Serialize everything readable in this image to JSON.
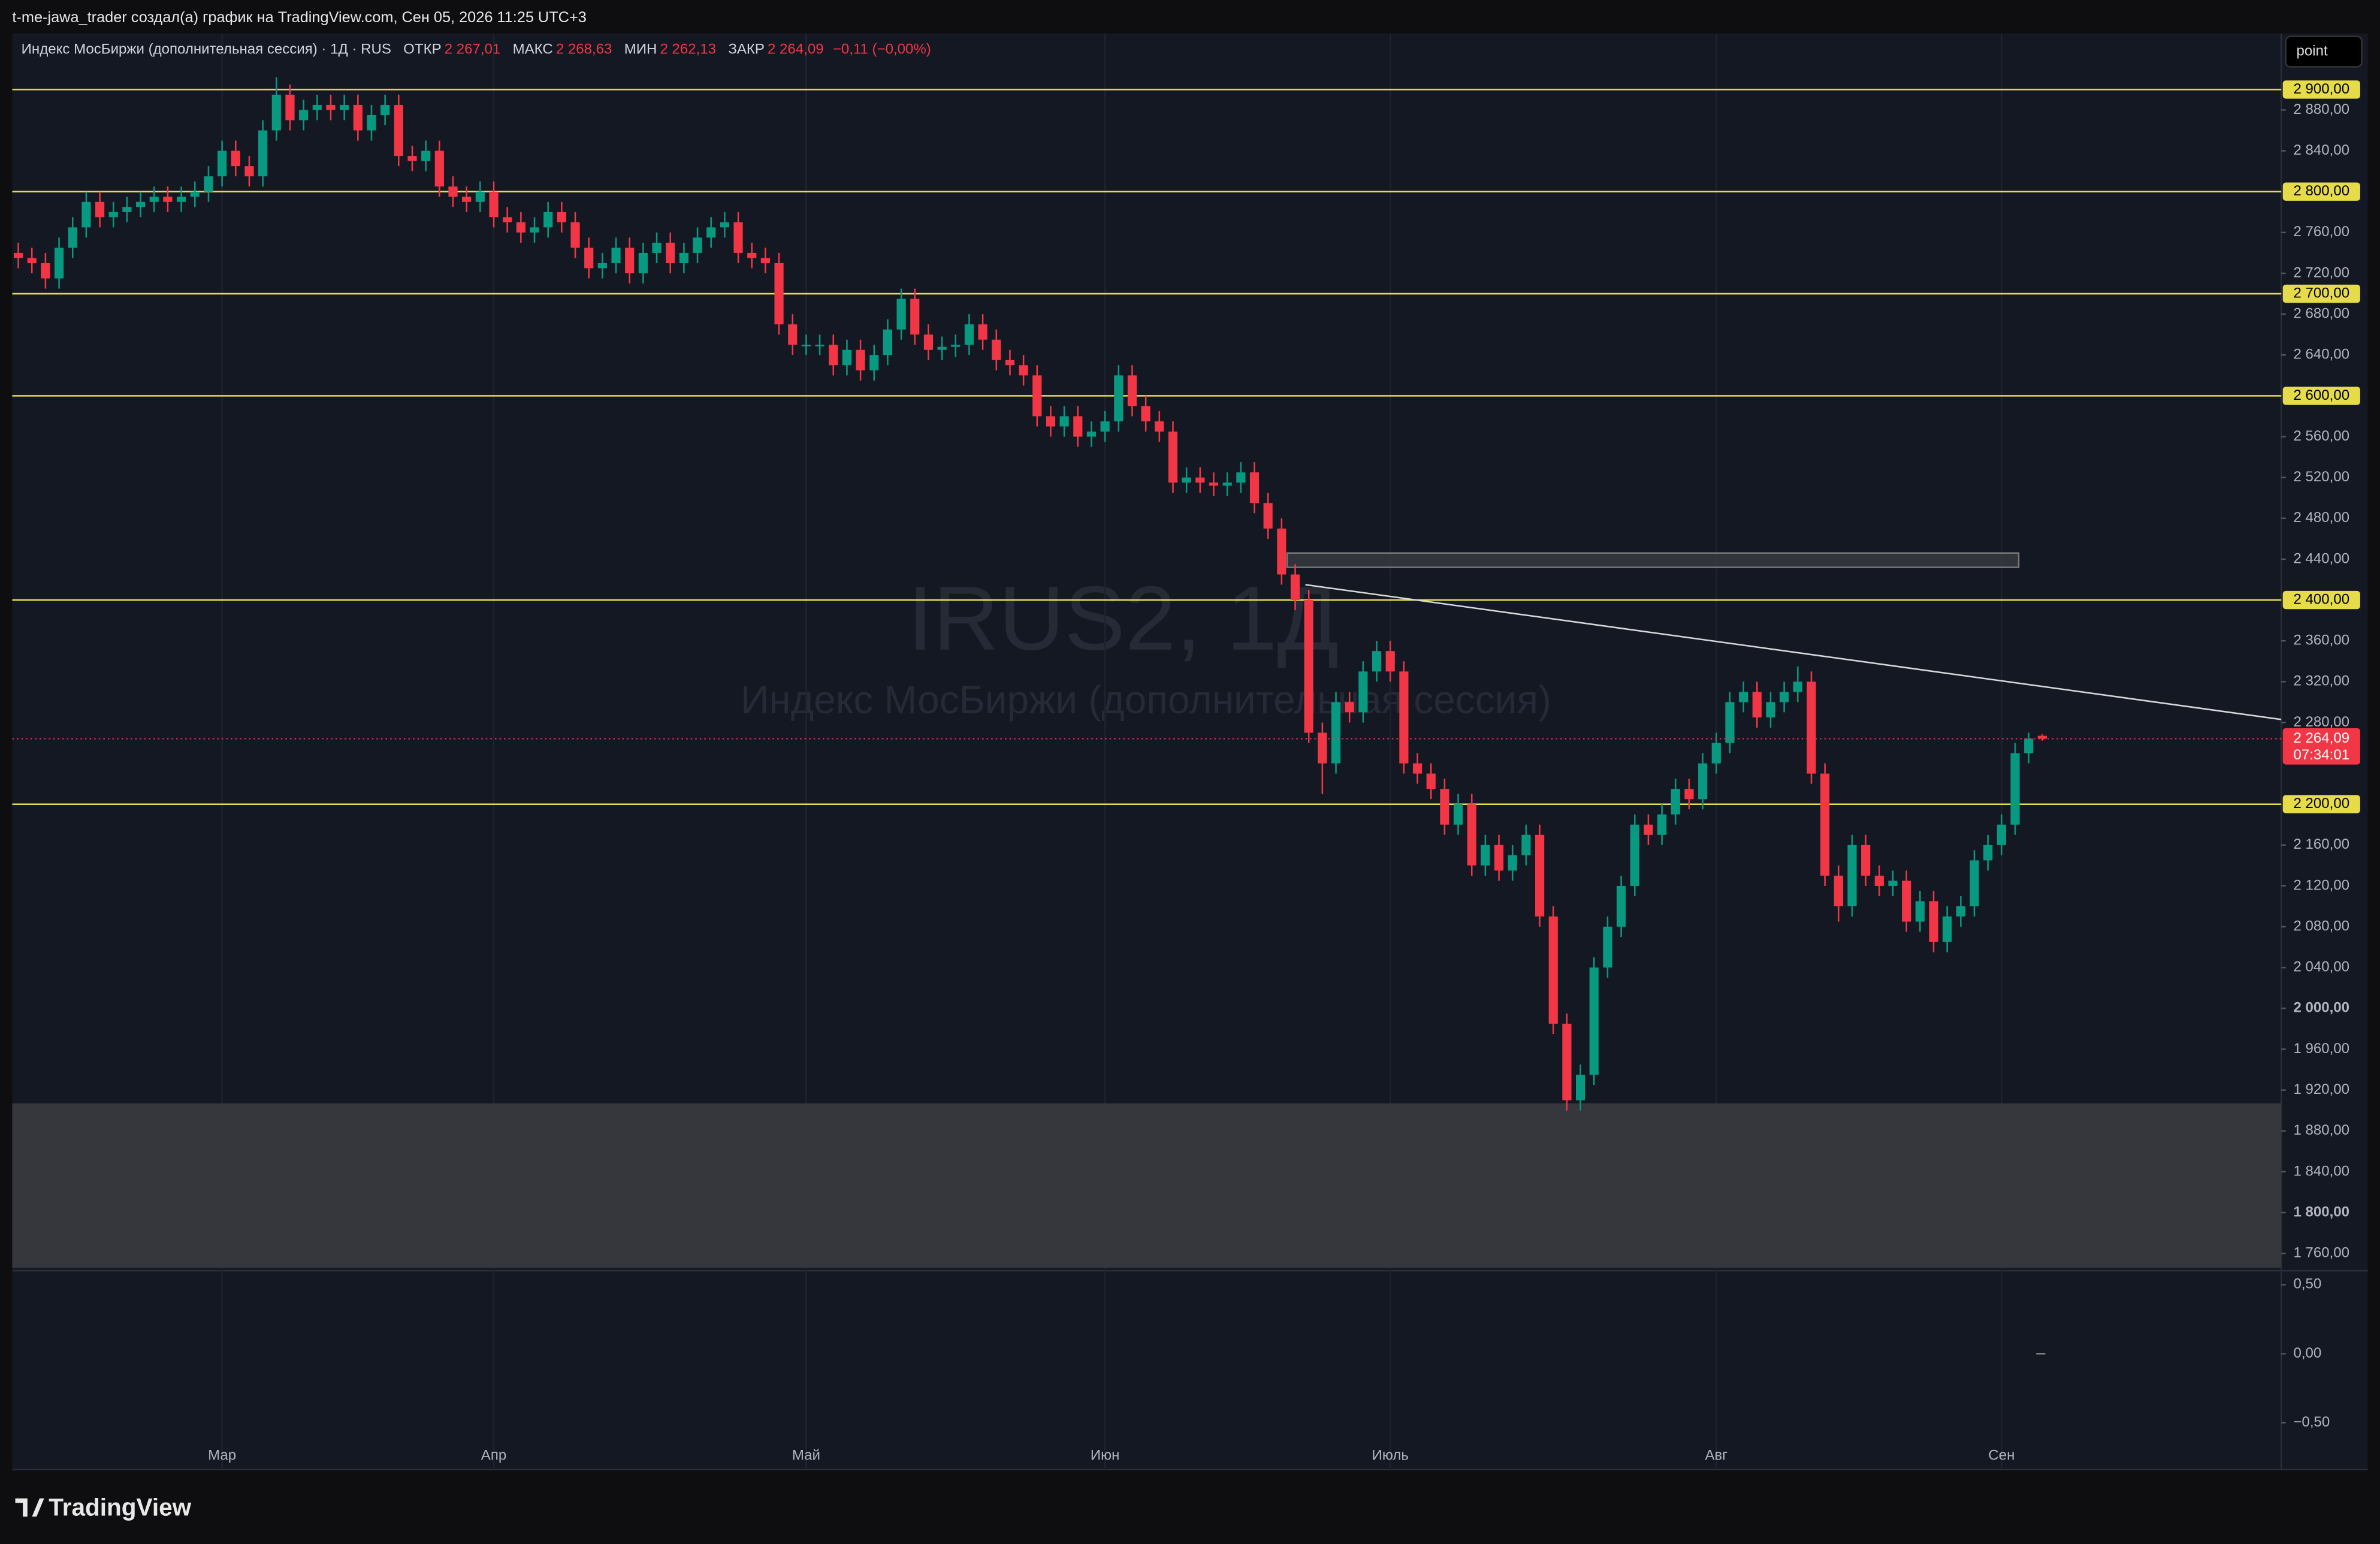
{
  "header": "t-me-jawa_trader создал(а) график на TradingView.com, Сен 05, 2026 11:25 UTC+3",
  "button": "point",
  "footer": "TradingView",
  "watermark": {
    "symbol": "IRUS2, 1Д",
    "name": "Индекс МосБиржи (дополнительная сессия)"
  },
  "legend": {
    "name": "Индекс МосБиржи (дополнительная сессия) · 1Д · RUS",
    "items": [
      {
        "key": "ОТКР",
        "value": "2 267,01"
      },
      {
        "key": "МАКС",
        "value": "2 268,63"
      },
      {
        "key": "МИН",
        "value": "2 262,13"
      },
      {
        "key": "ЗАКР",
        "value": "2 264,09"
      }
    ],
    "change": "−0,11 (−0,00%)"
  },
  "chart_data": {
    "type": "candlestick",
    "up_color": "#089981",
    "down_color": "#f23645",
    "categories": [
      null,
      null,
      null,
      null,
      null,
      null,
      null,
      null,
      null,
      null,
      null,
      null,
      null,
      null,
      null,
      "Мар",
      null,
      null,
      null,
      null,
      null,
      null,
      null,
      null,
      null,
      null,
      null,
      null,
      null,
      null,
      null,
      null,
      null,
      null,
      null,
      "Апр",
      null,
      null,
      null,
      null,
      null,
      null,
      null,
      null,
      null,
      null,
      null,
      null,
      null,
      null,
      null,
      null,
      null,
      null,
      null,
      null,
      null,
      null,
      "Май",
      null,
      null,
      null,
      null,
      null,
      null,
      null,
      null,
      null,
      null,
      null,
      null,
      null,
      null,
      null,
      null,
      null,
      null,
      null,
      null,
      null,
      "Июн",
      null,
      null,
      null,
      null,
      null,
      null,
      null,
      null,
      null,
      null,
      null,
      null,
      null,
      null,
      null,
      null,
      null,
      null,
      null,
      null,
      "Июль",
      null,
      null,
      null,
      null,
      null,
      null,
      null,
      null,
      null,
      null,
      null,
      null,
      null,
      null,
      null,
      null,
      null,
      null,
      null,
      null,
      null,
      null,
      null,
      "Авг",
      null,
      null,
      null,
      null,
      null,
      null,
      null,
      null,
      null,
      null,
      null,
      null,
      null,
      null,
      null,
      null,
      null,
      null,
      null,
      null,
      "Сен",
      null,
      null,
      null
    ],
    "open": [
      2740,
      2735,
      2730,
      2715,
      2745,
      2765,
      2790,
      2775,
      2780,
      2785,
      2790,
      2795,
      2790,
      2795,
      2800,
      2815,
      2840,
      2825,
      2815,
      2860,
      2895,
      2870,
      2880,
      2885,
      2880,
      2885,
      2860,
      2875,
      2885,
      2835,
      2830,
      2840,
      2805,
      2795,
      2790,
      2800,
      2775,
      2770,
      2760,
      2765,
      2780,
      2770,
      2745,
      2725,
      2730,
      2745,
      2720,
      2740,
      2750,
      2730,
      2740,
      2755,
      2765,
      2770,
      2740,
      2735,
      2730,
      2670,
      2650,
      2650,
      2650,
      2630,
      2645,
      2625,
      2640,
      2665,
      2695,
      2660,
      2645,
      2648,
      2650,
      2670,
      2655,
      2635,
      2630,
      2620,
      2580,
      2570,
      2580,
      2560,
      2565,
      2575,
      2620,
      2590,
      2575,
      2565,
      2515,
      2520,
      2515,
      2512,
      2515,
      2525,
      2495,
      2470,
      2425,
      2400,
      2270,
      2240,
      2300,
      2290,
      2330,
      2350,
      2330,
      2240,
      2230,
      2215,
      2180,
      2200,
      2140,
      2160,
      2135,
      2150,
      2170,
      2090,
      1985,
      1910,
      1935,
      2040,
      2080,
      2120,
      2180,
      2170,
      2190,
      2215,
      2205,
      2240,
      2260,
      2300,
      2310,
      2285,
      2300,
      2310,
      2320,
      2230,
      2130,
      2100,
      2160,
      2130,
      2120,
      2125,
      2085,
      2105,
      2065,
      2090,
      2100,
      2145,
      2160,
      2180,
      2250,
      2267.01
    ],
    "high": [
      2750,
      2745,
      2740,
      2755,
      2775,
      2800,
      2800,
      2790,
      2795,
      2800,
      2805,
      2805,
      2805,
      2810,
      2825,
      2850,
      2850,
      2835,
      2870,
      2912,
      2905,
      2890,
      2895,
      2895,
      2895,
      2895,
      2885,
      2895,
      2895,
      2845,
      2850,
      2850,
      2815,
      2805,
      2810,
      2810,
      2785,
      2780,
      2775,
      2790,
      2790,
      2780,
      2755,
      2740,
      2755,
      2755,
      2750,
      2760,
      2760,
      2750,
      2765,
      2775,
      2780,
      2780,
      2750,
      2745,
      2740,
      2680,
      2660,
      2660,
      2660,
      2655,
      2655,
      2650,
      2675,
      2705,
      2705,
      2670,
      2658,
      2660,
      2680,
      2680,
      2665,
      2645,
      2640,
      2630,
      2590,
      2590,
      2590,
      2575,
      2585,
      2630,
      2630,
      2600,
      2585,
      2575,
      2530,
      2530,
      2525,
      2525,
      2535,
      2535,
      2505,
      2480,
      2435,
      2410,
      2280,
      2310,
      2310,
      2340,
      2360,
      2360,
      2340,
      2250,
      2240,
      2225,
      2210,
      2210,
      2170,
      2170,
      2160,
      2180,
      2180,
      2100,
      1995,
      1945,
      2050,
      2090,
      2130,
      2190,
      2190,
      2200,
      2225,
      2225,
      2250,
      2270,
      2310,
      2320,
      2320,
      2310,
      2320,
      2335,
      2330,
      2240,
      2140,
      2170,
      2170,
      2140,
      2135,
      2135,
      2115,
      2115,
      2100,
      2110,
      2155,
      2170,
      2190,
      2260,
      2270,
      2268.63
    ],
    "low": [
      2725,
      2720,
      2705,
      2705,
      2735,
      2755,
      2765,
      2765,
      2770,
      2775,
      2780,
      2780,
      2780,
      2785,
      2790,
      2805,
      2815,
      2805,
      2805,
      2850,
      2860,
      2860,
      2870,
      2870,
      2870,
      2850,
      2850,
      2865,
      2825,
      2820,
      2820,
      2795,
      2785,
      2780,
      2780,
      2765,
      2760,
      2750,
      2750,
      2755,
      2760,
      2735,
      2715,
      2715,
      2720,
      2710,
      2710,
      2730,
      2720,
      2720,
      2730,
      2745,
      2755,
      2730,
      2725,
      2720,
      2660,
      2640,
      2640,
      2640,
      2620,
      2620,
      2615,
      2615,
      2630,
      2655,
      2650,
      2635,
      2635,
      2638,
      2640,
      2645,
      2625,
      2620,
      2610,
      2570,
      2560,
      2560,
      2550,
      2550,
      2555,
      2565,
      2580,
      2565,
      2555,
      2505,
      2505,
      2505,
      2502,
      2502,
      2505,
      2485,
      2460,
      2415,
      2390,
      2260,
      2210,
      2230,
      2280,
      2280,
      2320,
      2320,
      2230,
      2220,
      2205,
      2170,
      2170,
      2130,
      2130,
      2125,
      2125,
      2140,
      2080,
      1975,
      1900,
      1900,
      1925,
      2030,
      2070,
      2110,
      2160,
      2160,
      2180,
      2195,
      2195,
      2230,
      2250,
      2290,
      2275,
      2275,
      2290,
      2300,
      2220,
      2120,
      2085,
      2090,
      2120,
      2110,
      2110,
      2075,
      2075,
      2055,
      2055,
      2080,
      2090,
      2135,
      2150,
      2170,
      2240,
      2262.13
    ],
    "close": [
      2735,
      2730,
      2715,
      2745,
      2765,
      2790,
      2775,
      2780,
      2785,
      2790,
      2795,
      2790,
      2795,
      2800,
      2815,
      2840,
      2825,
      2815,
      2860,
      2895,
      2870,
      2880,
      2885,
      2880,
      2885,
      2860,
      2875,
      2885,
      2835,
      2830,
      2840,
      2805,
      2795,
      2790,
      2800,
      2775,
      2770,
      2760,
      2765,
      2780,
      2770,
      2745,
      2725,
      2730,
      2745,
      2720,
      2740,
      2750,
      2730,
      2740,
      2755,
      2765,
      2770,
      2740,
      2735,
      2730,
      2670,
      2650,
      2650,
      2650,
      2630,
      2645,
      2625,
      2640,
      2665,
      2695,
      2660,
      2645,
      2648,
      2650,
      2670,
      2655,
      2635,
      2630,
      2620,
      2580,
      2570,
      2580,
      2560,
      2565,
      2575,
      2620,
      2590,
      2575,
      2565,
      2515,
      2520,
      2515,
      2512,
      2515,
      2525,
      2495,
      2470,
      2425,
      2400,
      2270,
      2240,
      2300,
      2290,
      2330,
      2350,
      2330,
      2240,
      2230,
      2215,
      2180,
      2200,
      2140,
      2160,
      2135,
      2150,
      2170,
      2090,
      1985,
      1910,
      1935,
      2040,
      2080,
      2120,
      2180,
      2170,
      2190,
      2215,
      2205,
      2240,
      2260,
      2300,
      2310,
      2285,
      2300,
      2310,
      2320,
      2230,
      2130,
      2100,
      2160,
      2130,
      2120,
      2125,
      2085,
      2105,
      2065,
      2090,
      2100,
      2145,
      2160,
      2180,
      2250,
      2264.2,
      2264.09
    ],
    "ylim": [
      1746,
      2955
    ],
    "yticks": [
      {
        "value": 2880,
        "label": "2 880,00"
      },
      {
        "value": 2840,
        "label": "2 840,00"
      },
      {
        "value": 2760,
        "label": "2 760,00"
      },
      {
        "value": 2720,
        "label": "2 720,00"
      },
      {
        "value": 2680,
        "label": "2 680,00"
      },
      {
        "value": 2640,
        "label": "2 640,00"
      },
      {
        "value": 2560,
        "label": "2 560,00"
      },
      {
        "value": 2520,
        "label": "2 520,00"
      },
      {
        "value": 2480,
        "label": "2 480,00"
      },
      {
        "value": 2440,
        "label": "2 440,00"
      },
      {
        "value": 2360,
        "label": "2 360,00"
      },
      {
        "value": 2320,
        "label": "2 320,00"
      },
      {
        "value": 2280,
        "label": "2 280,00"
      },
      {
        "value": 2160,
        "label": "2 160,00"
      },
      {
        "value": 2120,
        "label": "2 120,00"
      },
      {
        "value": 2080,
        "label": "2 080,00"
      },
      {
        "value": 2040,
        "label": "2 040,00"
      },
      {
        "value": 2000,
        "label": "2 000,00"
      },
      {
        "value": 1960,
        "label": "1 960,00"
      },
      {
        "value": 1920,
        "label": "1 920,00"
      },
      {
        "value": 1880,
        "label": "1 880,00"
      },
      {
        "value": 1840,
        "label": "1 840,00"
      },
      {
        "value": 1800,
        "label": "1 800,00"
      },
      {
        "value": 1760,
        "label": "1 760,00"
      }
    ],
    "levels": [
      {
        "value": 2900,
        "label": "2 900,00"
      },
      {
        "value": 2800,
        "label": "2 800,00"
      },
      {
        "value": 2700,
        "label": "2 700,00"
      },
      {
        "value": 2600,
        "label": "2 600,00"
      },
      {
        "value": 2400,
        "label": "2 400,00"
      },
      {
        "value": 2200,
        "label": "2 200,00"
      }
    ],
    "level_color": "#e6dc4a",
    "zones": [
      {
        "low": 2432,
        "high": 2446
      },
      {
        "low": 1746,
        "high": 1907
      }
    ],
    "trendline": [
      2415,
      2283
    ],
    "price_label": {
      "value": "2 264,09",
      "countdown": "07:34:01"
    },
    "indicator": {
      "ylim": [
        -0.84,
        0.59
      ],
      "yticks": [
        {
          "value": 0.5,
          "label": "0,50"
        },
        {
          "value": 0,
          "label": "0,00"
        },
        {
          "value": -0.5,
          "label": "−0,50"
        }
      ],
      "value": 0
    }
  }
}
